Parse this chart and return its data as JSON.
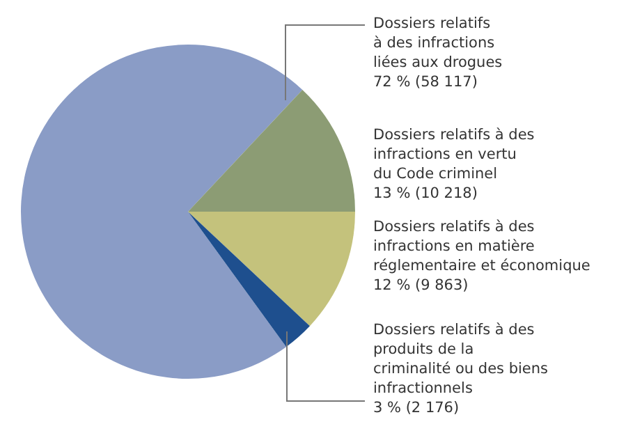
{
  "chart_data": {
    "type": "pie",
    "categories": [
      "Dossiers relatifs à des infractions liées aux drogues",
      "Dossiers relatifs à des infractions en vertu du Code criminel",
      "Dossiers relatifs à des infractions en matière réglementaire et économique",
      "Dossiers relatifs à des produits de la criminalité ou des biens infractionnels"
    ],
    "values": [
      72,
      13,
      12,
      3
    ],
    "colors": [
      "#8a9cc6",
      "#8c9c74",
      "#c4c27c",
      "#1e4f8e"
    ],
    "value_labels": [
      "72 % (58 117)",
      "13 % (10 218)",
      "12 % (9 863)",
      "3 % (2 176)"
    ]
  }
}
